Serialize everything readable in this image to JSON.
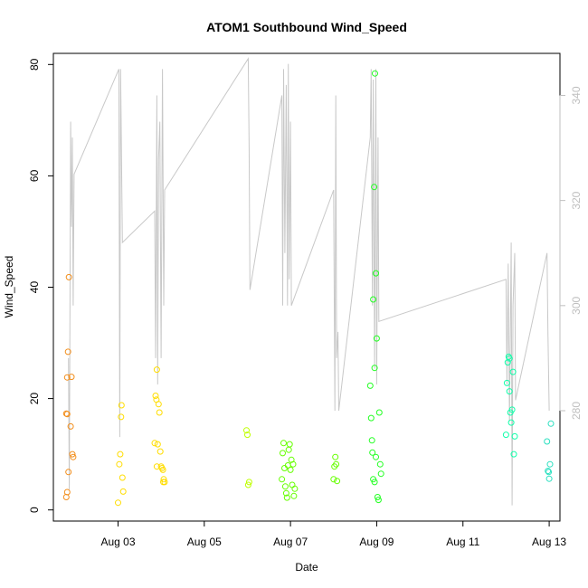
{
  "chart_data": {
    "type": "scatter",
    "title": "ATOM1 Southbound Wind_Speed",
    "xlabel": "Date",
    "ylabel": "Wind_Speed",
    "xlim": [
      1.5,
      13.25
    ],
    "ylim": [
      -2,
      82
    ],
    "y_ticks": [
      0,
      20,
      40,
      60,
      80
    ],
    "x_ticks": [
      {
        "value": 3,
        "label": "Aug 03"
      },
      {
        "value": 5,
        "label": "Aug 05"
      },
      {
        "value": 7,
        "label": "Aug 07"
      },
      {
        "value": 9,
        "label": "Aug 09"
      },
      {
        "value": 11,
        "label": "Aug 11"
      },
      {
        "value": 13,
        "label": "Aug 13"
      }
    ],
    "right_axis": {
      "ticks": [
        280,
        300,
        320,
        340
      ],
      "range": [
        259,
        348
      ],
      "color": "#bfbfbf",
      "series_color": "#c8c8c8",
      "line_points": [
        [
          1.85,
          290
        ],
        [
          1.87,
          265
        ],
        [
          1.9,
          335
        ],
        [
          1.92,
          315
        ],
        [
          1.94,
          332
        ],
        [
          1.96,
          300
        ],
        [
          1.98,
          325
        ],
        [
          3.02,
          345
        ],
        [
          3.04,
          275
        ],
        [
          3.06,
          345
        ],
        [
          3.1,
          312
        ],
        [
          3.85,
          318
        ],
        [
          3.87,
          290
        ],
        [
          3.9,
          340
        ],
        [
          3.92,
          285
        ],
        [
          3.94,
          328
        ],
        [
          3.97,
          335
        ],
        [
          4.0,
          290
        ],
        [
          4.03,
          345
        ],
        [
          4.06,
          300
        ],
        [
          4.08,
          322
        ],
        [
          6.02,
          347
        ],
        [
          6.04,
          330
        ],
        [
          6.06,
          303
        ],
        [
          6.8,
          340
        ],
        [
          6.82,
          300
        ],
        [
          6.84,
          345
        ],
        [
          6.87,
          310
        ],
        [
          6.9,
          342
        ],
        [
          6.93,
          300
        ],
        [
          6.95,
          346
        ],
        [
          6.97,
          305
        ],
        [
          7.0,
          335
        ],
        [
          7.02,
          300
        ],
        [
          8.0,
          322
        ],
        [
          8.03,
          280
        ],
        [
          8.05,
          340
        ],
        [
          8.07,
          290
        ],
        [
          8.1,
          295
        ],
        [
          8.12,
          280
        ],
        [
          8.85,
          332
        ],
        [
          8.87,
          345
        ],
        [
          8.9,
          300
        ],
        [
          8.92,
          343
        ],
        [
          8.95,
          288
        ],
        [
          8.98,
          345
        ],
        [
          9.0,
          285
        ],
        [
          9.03,
          332
        ],
        [
          9.05,
          297
        ],
        [
          12.0,
          305
        ],
        [
          12.02,
          285
        ],
        [
          12.05,
          308
        ],
        [
          12.08,
          278
        ],
        [
          12.12,
          312
        ],
        [
          12.14,
          262
        ],
        [
          12.16,
          300
        ],
        [
          12.2,
          310
        ],
        [
          12.22,
          282
        ],
        [
          12.95,
          310
        ],
        [
          12.97,
          295
        ],
        [
          13.0,
          280
        ]
      ]
    },
    "series": [
      {
        "color": "#f28e1c",
        "points": [
          [
            1.8,
            2.3
          ],
          [
            1.82,
            3.2
          ],
          [
            1.85,
            6.8
          ],
          [
            1.8,
            17.3
          ],
          [
            1.82,
            23.8
          ],
          [
            1.84,
            28.4
          ],
          [
            1.86,
            41.8
          ],
          [
            1.9,
            15.0
          ],
          [
            1.92,
            23.9
          ],
          [
            1.94,
            10.0
          ],
          [
            1.96,
            9.5
          ],
          [
            1.82,
            17.2
          ]
        ]
      },
      {
        "color": "#ffdd00",
        "points": [
          [
            3.0,
            1.3
          ],
          [
            3.03,
            8.2
          ],
          [
            3.05,
            10.0
          ],
          [
            3.07,
            16.7
          ],
          [
            3.08,
            18.8
          ],
          [
            3.1,
            5.8
          ],
          [
            3.12,
            3.3
          ],
          [
            3.85,
            12.0
          ],
          [
            3.87,
            20.5
          ],
          [
            3.89,
            19.8
          ],
          [
            3.9,
            25.2
          ],
          [
            3.92,
            11.8
          ],
          [
            3.94,
            19.0
          ],
          [
            3.96,
            17.5
          ],
          [
            3.98,
            10.5
          ],
          [
            4.0,
            7.8
          ],
          [
            4.02,
            7.5
          ],
          [
            4.04,
            7.2
          ],
          [
            4.06,
            5.5
          ],
          [
            4.08,
            5.0
          ],
          [
            3.9,
            7.8
          ],
          [
            4.05,
            5.0
          ]
        ]
      },
      {
        "color": "#bfff00",
        "points": [
          [
            5.98,
            14.3
          ],
          [
            6.0,
            13.5
          ],
          [
            6.02,
            4.5
          ],
          [
            6.04,
            5.0
          ]
        ]
      },
      {
        "color": "#66ff00",
        "points": [
          [
            6.8,
            5.5
          ],
          [
            6.82,
            10.2
          ],
          [
            6.84,
            12.0
          ],
          [
            6.86,
            7.5
          ],
          [
            6.88,
            4.2
          ],
          [
            6.9,
            3.0
          ],
          [
            6.92,
            2.2
          ],
          [
            6.94,
            8.0
          ],
          [
            6.96,
            10.8
          ],
          [
            6.98,
            11.8
          ],
          [
            7.0,
            7.2
          ],
          [
            7.02,
            9.0
          ],
          [
            7.04,
            4.5
          ],
          [
            7.06,
            8.2
          ],
          [
            7.08,
            2.5
          ],
          [
            7.1,
            3.8
          ],
          [
            8.0,
            5.5
          ],
          [
            8.02,
            7.8
          ],
          [
            8.04,
            9.5
          ],
          [
            8.06,
            8.2
          ],
          [
            8.08,
            5.2
          ]
        ]
      },
      {
        "color": "#22ff22",
        "points": [
          [
            8.85,
            22.3
          ],
          [
            8.87,
            16.5
          ],
          [
            8.89,
            12.5
          ],
          [
            8.9,
            10.3
          ],
          [
            8.92,
            37.8
          ],
          [
            8.94,
            58.0
          ],
          [
            8.95,
            25.5
          ],
          [
            8.96,
            78.4
          ],
          [
            8.98,
            42.5
          ],
          [
            9.0,
            30.8
          ],
          [
            9.02,
            2.3
          ],
          [
            9.04,
            1.8
          ],
          [
            9.06,
            17.5
          ],
          [
            9.08,
            8.2
          ],
          [
            9.1,
            6.5
          ],
          [
            8.92,
            5.5
          ],
          [
            8.95,
            5.0
          ],
          [
            8.98,
            9.5
          ]
        ]
      },
      {
        "color": "#11ffaa",
        "points": [
          [
            12.0,
            13.5
          ],
          [
            12.02,
            22.8
          ],
          [
            12.04,
            26.5
          ],
          [
            12.06,
            27.5
          ],
          [
            12.08,
            21.3
          ],
          [
            12.1,
            17.5
          ],
          [
            12.12,
            15.7
          ],
          [
            12.14,
            18.0
          ],
          [
            12.16,
            24.8
          ],
          [
            12.18,
            10.0
          ],
          [
            12.2,
            13.2
          ],
          [
            12.08,
            27.2
          ]
        ]
      },
      {
        "color": "#2be0c0",
        "points": [
          [
            12.95,
            12.3
          ],
          [
            12.97,
            7.0
          ],
          [
            12.99,
            6.8
          ],
          [
            13.0,
            5.6
          ],
          [
            13.02,
            8.2
          ],
          [
            13.04,
            15.5
          ]
        ]
      }
    ]
  }
}
